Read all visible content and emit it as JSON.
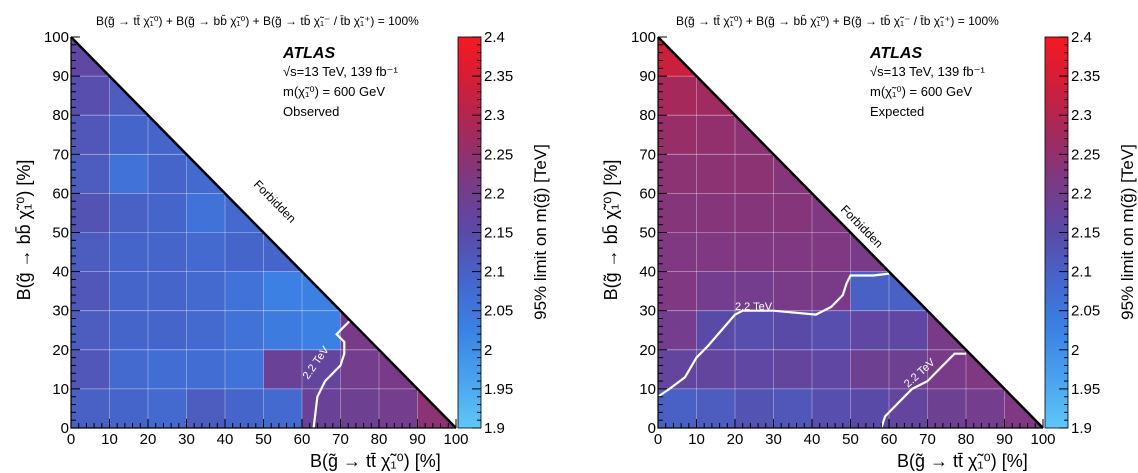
{
  "colors": {
    "scale": [
      "#5ec8f7",
      "#4aa2ef",
      "#3a82e4",
      "#4566cc",
      "#5a4aa8",
      "#7a3a86",
      "#a22a5e",
      "#d01e3a",
      "#f41a22"
    ],
    "contour": "#ffffff",
    "frame": "#000000"
  },
  "chart_data": [
    {
      "type": "heatmap",
      "header": "B(g̃ → tt̄ χ̃₁⁰) + B(g̃ → bb̄ χ̃₁⁰) + B(g̃ → tb̄ χ̃₁⁻ / t̄b χ̃₁⁺) = 100%",
      "title": "ATLAS",
      "annotations": [
        "√s=13 TeV, 139 fb⁻¹",
        "m(χ̃₁⁰) = 600 GeV",
        "Observed"
      ],
      "xlabel": "B(g̃ → tt̄ χ̃₁⁰)   [%]",
      "ylabel": "B(g̃ → bb̄ χ̃₁⁰)   [%]",
      "zlabel": "95% limit on m(g̃) [TeV]",
      "xlim": [
        0,
        100
      ],
      "ylim": [
        0,
        100
      ],
      "zlim": [
        1.9,
        2.4
      ],
      "x_ticks": [
        "0",
        "10",
        "20",
        "30",
        "40",
        "50",
        "60",
        "70",
        "80",
        "90",
        "100"
      ],
      "y_ticks": [
        "0",
        "10",
        "20",
        "30",
        "40",
        "50",
        "60",
        "70",
        "80",
        "90",
        "100"
      ],
      "z_ticks": [
        "1.9",
        "1.95",
        "2",
        "2.05",
        "2.1",
        "2.15",
        "2.2",
        "2.25",
        "2.3",
        "2.35",
        "2.4"
      ],
      "region_label": "Forbidden",
      "contour_label": "2.2 TeV",
      "cell_size": 10,
      "cells": [
        [
          2.1,
          2.09,
          2.08,
          2.11,
          2.09,
          2.08,
          2.18,
          2.19,
          2.2,
          2.24,
          2.33
        ],
        [
          2.12,
          2.08,
          2.07,
          2.07,
          2.06,
          2.18,
          2.17,
          2.2,
          2.21,
          2.23
        ],
        [
          2.11,
          2.09,
          2.09,
          2.08,
          2.06,
          2.04,
          2.03,
          2.21,
          2.22
        ],
        [
          2.12,
          2.09,
          2.09,
          2.08,
          2.06,
          2.03,
          2.03,
          2.21
        ],
        [
          2.11,
          2.09,
          2.09,
          2.08,
          2.09,
          2.09,
          2.09
        ],
        [
          2.13,
          2.1,
          2.09,
          2.06,
          2.08,
          2.09
        ],
        [
          2.11,
          2.06,
          2.09,
          2.08,
          2.09
        ],
        [
          2.12,
          2.09,
          2.09,
          2.1
        ],
        [
          2.14,
          2.11,
          2.1
        ],
        [
          2.16,
          2.12
        ],
        [
          2.18
        ]
      ],
      "contour_x": [
        63,
        64,
        66,
        70,
        71,
        71,
        69,
        71,
        73
      ],
      "contour_y": [
        0,
        8,
        12,
        16,
        19,
        22,
        24,
        26,
        28
      ]
    },
    {
      "type": "heatmap",
      "header": "B(g̃ → tt̄ χ̃₁⁰) + B(g̃ → bb̄ χ̃₁⁰) + B(g̃ → tb̄ χ̃₁⁻ / t̄b χ̃₁⁺) = 100%",
      "title": "ATLAS",
      "annotations": [
        "√s=13 TeV, 139 fb⁻¹",
        "m(χ̃₁⁰) = 600 GeV",
        "Expected"
      ],
      "xlabel": "B(g̃ → tt̄ χ̃₁⁰)   [%]",
      "ylabel": "B(g̃ → bb̄ χ̃₁⁰)   [%]",
      "zlabel": "95% limit on m(g̃) [TeV]",
      "xlim": [
        0,
        100
      ],
      "ylim": [
        0,
        100
      ],
      "zlim": [
        1.9,
        2.4
      ],
      "x_ticks": [
        "0",
        "10",
        "20",
        "30",
        "40",
        "50",
        "60",
        "70",
        "80",
        "90",
        "100"
      ],
      "y_ticks": [
        "0",
        "10",
        "20",
        "30",
        "40",
        "50",
        "60",
        "70",
        "80",
        "90",
        "100"
      ],
      "z_ticks": [
        "1.9",
        "1.95",
        "2",
        "2.05",
        "2.1",
        "2.15",
        "2.2",
        "2.25",
        "2.3",
        "2.35",
        "2.4"
      ],
      "region_label": "Forbidden",
      "contour_label": "2.2 TeV",
      "cell_size": 10,
      "cells": [
        [
          2.1,
          2.11,
          2.13,
          2.12,
          2.14,
          2.15,
          2.17,
          2.19,
          2.2,
          2.22,
          2.28
        ],
        [
          2.17,
          2.17,
          2.16,
          2.17,
          2.16,
          2.19,
          2.19,
          2.21,
          2.22,
          2.22
        ],
        [
          2.2,
          2.15,
          2.14,
          2.15,
          2.14,
          2.16,
          2.16,
          2.21,
          2.22
        ],
        [
          2.22,
          2.2,
          2.2,
          2.21,
          2.21,
          2.1,
          2.1,
          2.2
        ],
        [
          2.22,
          2.22,
          2.22,
          2.22,
          2.22,
          2.21,
          2.22
        ],
        [
          2.23,
          2.23,
          2.23,
          2.23,
          2.22,
          2.22
        ],
        [
          2.24,
          2.24,
          2.24,
          2.23,
          2.23
        ],
        [
          2.26,
          2.25,
          2.24,
          2.23
        ],
        [
          2.28,
          2.27,
          2.25
        ],
        [
          2.33,
          2.28
        ],
        [
          2.27
        ]
      ],
      "contour_x": [
        0,
        3,
        7,
        10,
        13,
        20,
        22,
        30,
        41,
        45,
        48,
        49,
        50,
        56,
        60
      ],
      "contour_y": [
        8,
        10,
        13,
        18,
        21,
        29,
        30,
        30,
        29,
        31,
        34,
        37,
        39,
        39,
        39.5
      ],
      "contour2_x": [
        58,
        59,
        62,
        64,
        66,
        70,
        73,
        77,
        80
      ],
      "contour2_y": [
        0,
        3,
        6,
        8,
        10,
        12,
        15,
        19,
        19
      ]
    }
  ]
}
